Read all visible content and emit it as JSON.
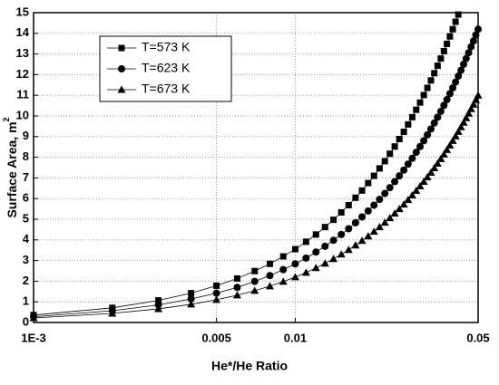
{
  "chart_data": {
    "type": "line",
    "x_label": "He*/He Ratio",
    "y_label": "Surface Area, m",
    "y_label_sup": "2",
    "x": [
      0.001,
      0.002,
      0.003,
      0.004,
      0.005,
      0.006,
      0.007,
      0.008,
      0.009,
      0.01,
      0.011,
      0.012,
      0.013,
      0.014,
      0.015,
      0.016,
      0.017,
      0.018,
      0.019,
      0.02,
      0.021,
      0.022,
      0.023,
      0.024,
      0.025,
      0.026,
      0.027,
      0.028,
      0.029,
      0.03,
      0.031,
      0.032,
      0.033,
      0.034,
      0.035,
      0.036,
      0.037,
      0.038,
      0.039,
      0.04,
      0.041,
      0.042,
      0.043,
      0.044,
      0.045,
      0.046,
      0.047,
      0.048,
      0.049,
      0.05
    ],
    "series": [
      {
        "name": "T=573 K",
        "color": "#000000",
        "marker": "square",
        "values": [
          0.36,
          0.71,
          1.07,
          1.42,
          1.78,
          2.13,
          2.49,
          2.84,
          3.2,
          3.55,
          3.91,
          4.26,
          4.62,
          4.97,
          5.33,
          5.68,
          6.04,
          6.39,
          6.75,
          7.1,
          7.46,
          7.81,
          8.17,
          8.52,
          8.88,
          9.23,
          9.59,
          9.94,
          10.3,
          10.65,
          11.01,
          11.36,
          11.72,
          12.07,
          12.43,
          12.78,
          13.14,
          13.49,
          13.85,
          14.2,
          14.56,
          14.91,
          null,
          null,
          null,
          null,
          null,
          null,
          null,
          null
        ]
      },
      {
        "name": "T=623 K",
        "color": "#000000",
        "marker": "circle",
        "values": [
          0.28,
          0.57,
          0.85,
          1.14,
          1.42,
          1.7,
          1.99,
          2.27,
          2.56,
          2.84,
          3.12,
          3.41,
          3.69,
          3.98,
          4.26,
          4.54,
          4.83,
          5.11,
          5.4,
          5.68,
          5.96,
          6.25,
          6.53,
          6.82,
          7.1,
          7.38,
          7.67,
          7.95,
          8.24,
          8.52,
          8.8,
          9.09,
          9.37,
          9.66,
          9.94,
          10.22,
          10.51,
          10.79,
          11.08,
          11.36,
          11.64,
          11.93,
          12.21,
          12.5,
          12.78,
          13.06,
          13.35,
          13.63,
          13.92,
          14.2
        ]
      },
      {
        "name": "T=673 K",
        "color": "#000000",
        "marker": "triangle",
        "values": [
          0.22,
          0.44,
          0.66,
          0.88,
          1.1,
          1.32,
          1.54,
          1.76,
          1.98,
          2.2,
          2.42,
          2.64,
          2.86,
          3.08,
          3.3,
          3.52,
          3.74,
          3.96,
          4.18,
          4.4,
          4.62,
          4.84,
          5.06,
          5.28,
          5.5,
          5.72,
          5.94,
          6.16,
          6.38,
          6.6,
          6.82,
          7.04,
          7.26,
          7.48,
          7.7,
          7.92,
          8.14,
          8.36,
          8.58,
          8.8,
          9.02,
          9.24,
          9.46,
          9.68,
          9.9,
          10.12,
          10.34,
          10.56,
          10.78,
          11.0
        ]
      }
    ],
    "xlim": [
      0.001,
      0.05
    ],
    "xscale": "log",
    "xticks": [
      {
        "value": 0.001,
        "label": "1E-3"
      },
      0.005,
      0.01,
      0.05
    ],
    "ylim": [
      0,
      15
    ],
    "yticks": [
      0,
      1,
      2,
      3,
      4,
      5,
      6,
      7,
      8,
      9,
      10,
      11,
      12,
      13,
      14,
      15
    ],
    "grid": true,
    "legend": "upper left"
  }
}
